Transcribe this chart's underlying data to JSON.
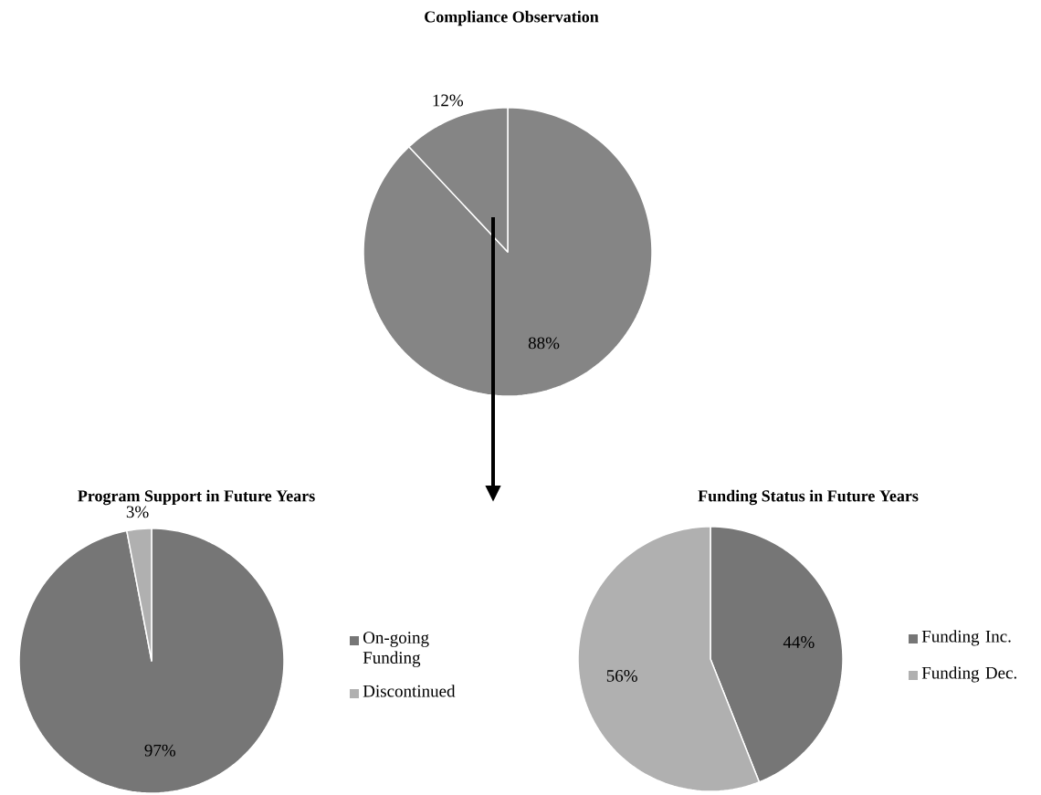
{
  "chart_data": [
    {
      "type": "pie",
      "title": "Compliance Observation",
      "categories": [
        null,
        null
      ],
      "values": [
        88,
        12
      ],
      "colors": [
        "#858585",
        "#858585"
      ],
      "value_labels": [
        "88%",
        "12%"
      ]
    },
    {
      "type": "pie",
      "title": "Program Support in Future Years",
      "categories": [
        "On-going Funding",
        "Discontinued"
      ],
      "values": [
        97,
        3
      ],
      "colors": [
        "#767676",
        "#b0b0b0"
      ],
      "value_labels": [
        "97%",
        "3%"
      ],
      "legend": "right"
    },
    {
      "type": "pie",
      "title": "Funding  Status in Future Years",
      "categories": [
        "Funding Inc.",
        "Funding Dec."
      ],
      "values": [
        44,
        56
      ],
      "colors": [
        "#767676",
        "#b0b0b0"
      ],
      "value_labels": [
        "44%",
        "56%"
      ],
      "legend": "right"
    }
  ]
}
